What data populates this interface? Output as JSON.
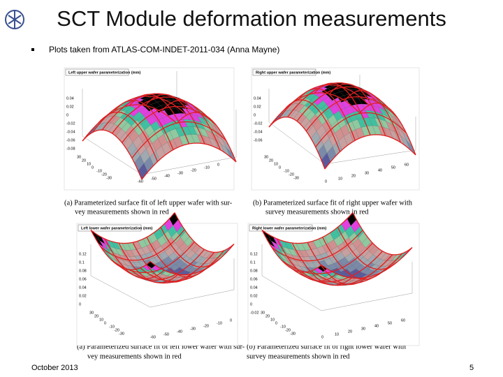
{
  "header": {
    "title": "SCT Module deformation measurements"
  },
  "bullet": "Plots taken from ATLAS-COM-INDET-2011-034 (Anna Mayne)",
  "panels": [
    {
      "title": "Left upper wafer parameterization (mm)",
      "zticks": [
        "0.04",
        "0.02",
        "0",
        "-0.02",
        "-0.04",
        "-0.06",
        "-0.08"
      ],
      "yticks": [
        "30",
        "20",
        "10",
        "0",
        "-10",
        "-20",
        "-30"
      ],
      "xticks": [
        "-60",
        "-50",
        "-40",
        "-30",
        "-20",
        "-10",
        "0"
      ]
    },
    {
      "title": "Right upper wafer parameterization (mm)",
      "zticks": [
        "0.04",
        "0.02",
        "0",
        "-0.02",
        "-0.04",
        "-0.06"
      ],
      "yticks": [
        "30",
        "20",
        "10",
        "0",
        "-10",
        "-20",
        "-30"
      ],
      "xticks": [
        "0",
        "10",
        "20",
        "30",
        "40",
        "50",
        "60"
      ]
    },
    {
      "title": "Left lower wafer parameterization (mm)",
      "zticks": [
        "0.12",
        "0.1",
        "0.08",
        "0.06",
        "0.04",
        "0.02",
        "0"
      ],
      "yticks": [
        "30",
        "20",
        "10",
        "0",
        "-10",
        "-20",
        "-30"
      ],
      "xticks": [
        "-60",
        "-50",
        "-40",
        "-30",
        "-20",
        "-10",
        "0"
      ]
    },
    {
      "title": "Right lower wafer parameterization (mm)",
      "zticks": [
        "0.12",
        "0.1",
        "0.08",
        "0.06",
        "0.04",
        "0.02",
        "0",
        "-0.02"
      ],
      "yticks": [
        "30",
        "20",
        "10",
        "0",
        "-10",
        "-20",
        "-30"
      ],
      "xticks": [
        "0",
        "10",
        "20",
        "30",
        "40",
        "50",
        "60"
      ]
    }
  ],
  "captions": [
    [
      "(a) Parameterized surface fit of left upper wafer with sur-",
      "vey measurements shown in red"
    ],
    [
      "(b) Parameterized surface fit of right upper wafer with",
      "survey measurements shown in red"
    ],
    [
      "(a) Parameterized surface fit of left lower wafer with sur-",
      "vey measurements shown in red"
    ],
    [
      "(b) Parameterized surface fit of right lower wafer with",
      "survey measurements shown in red"
    ]
  ],
  "footer": {
    "date": "October 2013",
    "page": "5"
  }
}
